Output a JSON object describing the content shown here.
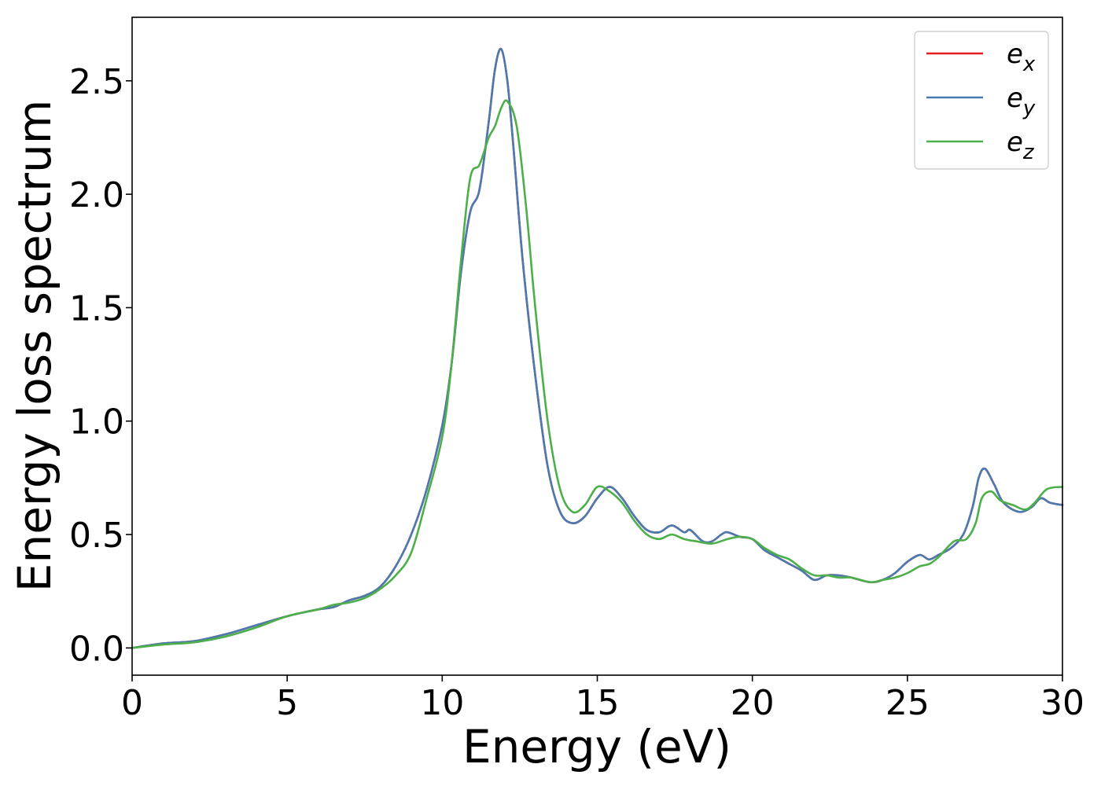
{
  "chart_data": {
    "type": "line",
    "title": "",
    "xlabel": "Energy (eV)",
    "ylabel": "Energy loss spectrum",
    "xlim": [
      0,
      30
    ],
    "ylim": [
      -0.12,
      2.78
    ],
    "xticks": [
      0,
      5,
      10,
      15,
      20,
      25,
      30
    ],
    "xtick_labels": [
      "0",
      "5",
      "10",
      "15",
      "20",
      "25",
      "30"
    ],
    "yticks": [
      0.0,
      0.5,
      1.0,
      1.5,
      2.0,
      2.5
    ],
    "ytick_labels": [
      "0.0",
      "0.5",
      "1.0",
      "1.5",
      "2.0",
      "2.5"
    ],
    "grid": false,
    "legend_position": "top-right",
    "series": [
      {
        "name": "e_x",
        "legend_base": "e",
        "legend_sub": "x",
        "color": "#e41a1c",
        "x": [
          0,
          1,
          2,
          3,
          4,
          5,
          6,
          6.5,
          7,
          7.5,
          8,
          8.5,
          9,
          9.5,
          10,
          10.3,
          10.6,
          10.9,
          11.2,
          11.5,
          11.7,
          11.9,
          12.1,
          12.3,
          12.6,
          13,
          13.4,
          13.8,
          14.2,
          14.6,
          15,
          15.4,
          15.8,
          16.2,
          16.6,
          17,
          17.4,
          17.8,
          18,
          18.4,
          18.7,
          19,
          19.2,
          19.6,
          20,
          20.4,
          20.8,
          21.2,
          21.6,
          22,
          22.4,
          22.8,
          23.2,
          23.8,
          24.2,
          24.6,
          25,
          25.4,
          25.7,
          26,
          26.4,
          26.8,
          27.1,
          27.3,
          27.5,
          27.8,
          28.1,
          28.6,
          29,
          29.3,
          29.6,
          30
        ],
        "y": [
          0,
          0.02,
          0.03,
          0.06,
          0.1,
          0.14,
          0.17,
          0.18,
          0.21,
          0.23,
          0.27,
          0.36,
          0.5,
          0.7,
          0.98,
          1.25,
          1.65,
          1.92,
          2.02,
          2.32,
          2.55,
          2.64,
          2.5,
          2.2,
          1.7,
          1.2,
          0.8,
          0.6,
          0.55,
          0.58,
          0.66,
          0.71,
          0.66,
          0.58,
          0.52,
          0.51,
          0.54,
          0.51,
          0.52,
          0.47,
          0.47,
          0.5,
          0.51,
          0.49,
          0.48,
          0.43,
          0.4,
          0.37,
          0.34,
          0.3,
          0.32,
          0.32,
          0.31,
          0.29,
          0.3,
          0.33,
          0.38,
          0.41,
          0.39,
          0.41,
          0.44,
          0.5,
          0.62,
          0.75,
          0.79,
          0.72,
          0.64,
          0.6,
          0.62,
          0.66,
          0.64,
          0.63
        ]
      },
      {
        "name": "e_y",
        "legend_base": "e",
        "legend_sub": "y",
        "color": "#4a7ab0",
        "x": [
          0,
          1,
          2,
          3,
          4,
          5,
          6,
          6.5,
          7,
          7.5,
          8,
          8.5,
          9,
          9.5,
          10,
          10.3,
          10.6,
          10.9,
          11.2,
          11.5,
          11.7,
          11.9,
          12.1,
          12.3,
          12.6,
          13,
          13.4,
          13.8,
          14.2,
          14.6,
          15,
          15.4,
          15.8,
          16.2,
          16.6,
          17,
          17.4,
          17.8,
          18,
          18.4,
          18.7,
          19,
          19.2,
          19.6,
          20,
          20.4,
          20.8,
          21.2,
          21.6,
          22,
          22.4,
          22.8,
          23.2,
          23.8,
          24.2,
          24.6,
          25,
          25.4,
          25.7,
          26,
          26.4,
          26.8,
          27.1,
          27.3,
          27.5,
          27.8,
          28.1,
          28.6,
          29,
          29.3,
          29.6,
          30
        ],
        "y": [
          0,
          0.02,
          0.03,
          0.06,
          0.1,
          0.14,
          0.17,
          0.18,
          0.21,
          0.23,
          0.27,
          0.36,
          0.5,
          0.7,
          0.98,
          1.25,
          1.65,
          1.92,
          2.02,
          2.32,
          2.55,
          2.64,
          2.5,
          2.2,
          1.7,
          1.2,
          0.8,
          0.6,
          0.55,
          0.58,
          0.66,
          0.71,
          0.66,
          0.58,
          0.52,
          0.51,
          0.54,
          0.51,
          0.52,
          0.47,
          0.47,
          0.5,
          0.51,
          0.49,
          0.48,
          0.43,
          0.4,
          0.37,
          0.34,
          0.3,
          0.32,
          0.32,
          0.31,
          0.29,
          0.3,
          0.33,
          0.38,
          0.41,
          0.39,
          0.41,
          0.44,
          0.5,
          0.62,
          0.75,
          0.79,
          0.72,
          0.64,
          0.6,
          0.62,
          0.66,
          0.64,
          0.63
        ]
      },
      {
        "name": "e_z",
        "legend_base": "e",
        "legend_sub": "z",
        "color": "#4daf4a",
        "x": [
          0,
          1,
          2,
          3,
          4,
          5,
          6,
          6.5,
          7,
          7.5,
          8,
          8.5,
          9,
          9.5,
          10,
          10.3,
          10.6,
          10.9,
          11.2,
          11.5,
          11.7,
          11.9,
          12.1,
          12.4,
          12.7,
          13,
          13.4,
          13.8,
          14.2,
          14.6,
          15,
          15.4,
          15.8,
          16.2,
          16.6,
          17,
          17.4,
          17.8,
          18.2,
          18.7,
          19.2,
          19.6,
          20,
          20.4,
          20.8,
          21.2,
          21.6,
          22,
          22.4,
          22.8,
          23.2,
          23.8,
          24.2,
          24.6,
          25,
          25.4,
          25.7,
          26,
          26.5,
          26.9,
          27.2,
          27.4,
          27.7,
          28,
          28.4,
          28.8,
          29.1,
          29.5,
          30
        ],
        "y": [
          0,
          0.015,
          0.025,
          0.05,
          0.09,
          0.14,
          0.17,
          0.19,
          0.2,
          0.22,
          0.26,
          0.32,
          0.42,
          0.66,
          0.93,
          1.25,
          1.7,
          2.07,
          2.13,
          2.25,
          2.3,
          2.38,
          2.41,
          2.3,
          1.95,
          1.5,
          1.0,
          0.7,
          0.6,
          0.63,
          0.71,
          0.69,
          0.64,
          0.56,
          0.5,
          0.48,
          0.5,
          0.48,
          0.47,
          0.46,
          0.48,
          0.49,
          0.48,
          0.44,
          0.41,
          0.39,
          0.35,
          0.32,
          0.32,
          0.31,
          0.31,
          0.29,
          0.3,
          0.31,
          0.33,
          0.36,
          0.37,
          0.4,
          0.47,
          0.48,
          0.55,
          0.66,
          0.69,
          0.65,
          0.63,
          0.61,
          0.64,
          0.7,
          0.71
        ]
      }
    ]
  }
}
